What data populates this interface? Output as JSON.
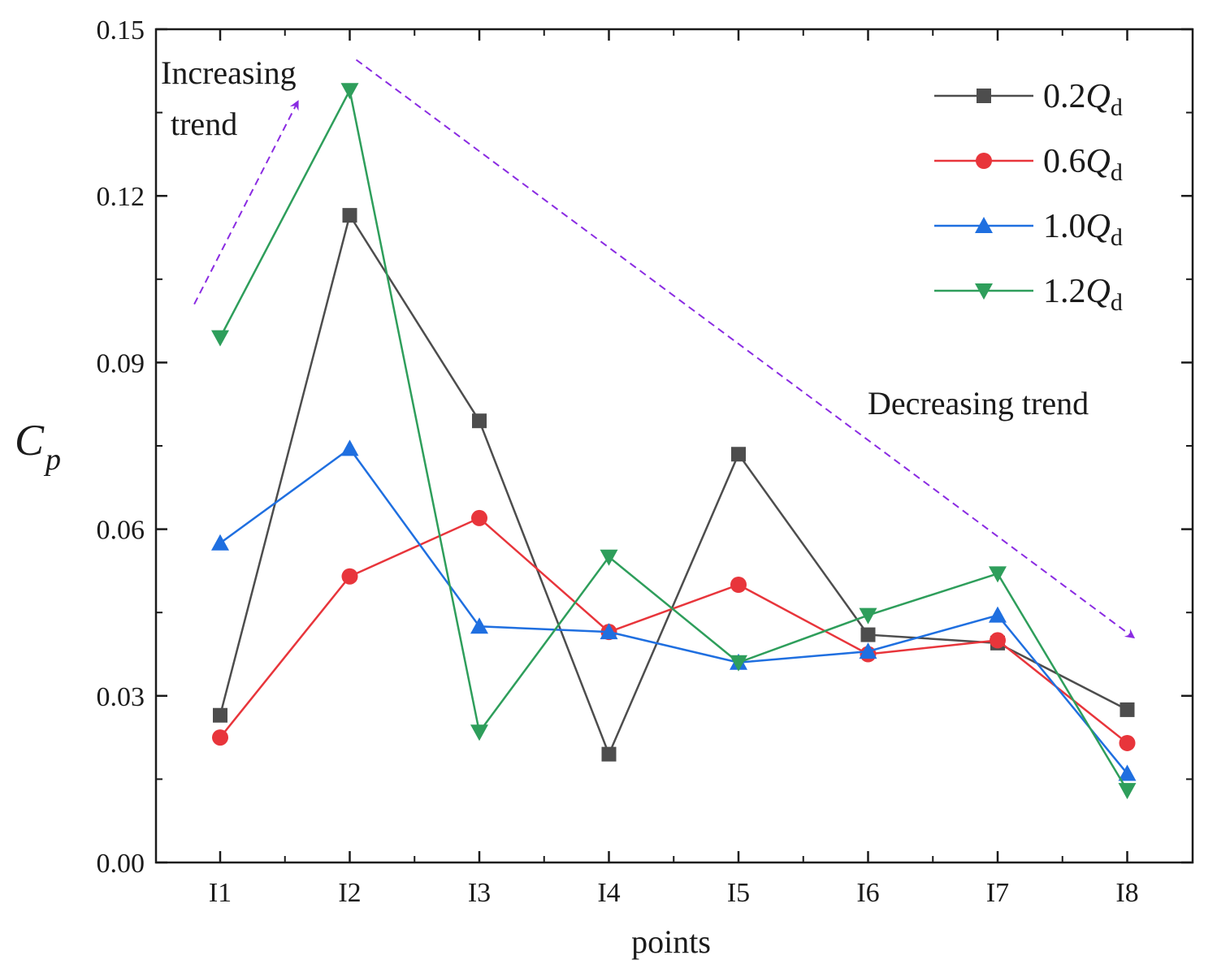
{
  "chart_data": {
    "type": "line",
    "title": "",
    "xlabel": "points",
    "ylabel": "C",
    "ylabel_sub": "p",
    "categories": [
      "I1",
      "I2",
      "I3",
      "I4",
      "I5",
      "I6",
      "I7",
      "I8"
    ],
    "ylim": [
      0,
      0.15
    ],
    "yticks": [
      "0.00",
      "0.03",
      "0.06",
      "0.09",
      "0.12",
      "0.15"
    ],
    "series": [
      {
        "name": "0.2Qd",
        "label_main": "0.2",
        "label_var": "Q",
        "label_sub": "d",
        "color": "#4d4d4d",
        "marker": "square",
        "values": [
          0.0265,
          0.1165,
          0.0795,
          0.0195,
          0.0735,
          0.041,
          0.0395,
          0.0275
        ]
      },
      {
        "name": "0.6Qd",
        "label_main": "0.6",
        "label_var": "Q",
        "label_sub": "d",
        "color": "#e8353b",
        "marker": "circle",
        "values": [
          0.0225,
          0.0515,
          0.062,
          0.0415,
          0.05,
          0.0375,
          0.04,
          0.0215
        ]
      },
      {
        "name": "1.0Qd",
        "label_main": "1.0",
        "label_var": "Q",
        "label_sub": "d",
        "color": "#1f6fe0",
        "marker": "triangle-up",
        "values": [
          0.0575,
          0.0745,
          0.0425,
          0.0415,
          0.036,
          0.038,
          0.0445,
          0.016
        ]
      },
      {
        "name": "1.2Qd",
        "label_main": "1.2",
        "label_var": "Q",
        "label_sub": "d",
        "color": "#2e9e5b",
        "marker": "triangle-down",
        "values": [
          0.0945,
          0.139,
          0.0235,
          0.055,
          0.036,
          0.0445,
          0.052,
          0.013
        ]
      }
    ],
    "legend_position": "top-right",
    "annotations": [
      {
        "id": "increasing",
        "lines": [
          "Increasing",
          "trend"
        ],
        "arrow_from": [
          0.8,
          0.1005
        ],
        "arrow_to": [
          1.6,
          0.137
        ]
      },
      {
        "id": "decreasing",
        "lines": [
          "Decreasing trend"
        ],
        "arrow_from": [
          2.05,
          0.1445
        ],
        "arrow_to": [
          8.05,
          0.0405
        ]
      }
    ],
    "arrow_color": "#8a2be2"
  }
}
